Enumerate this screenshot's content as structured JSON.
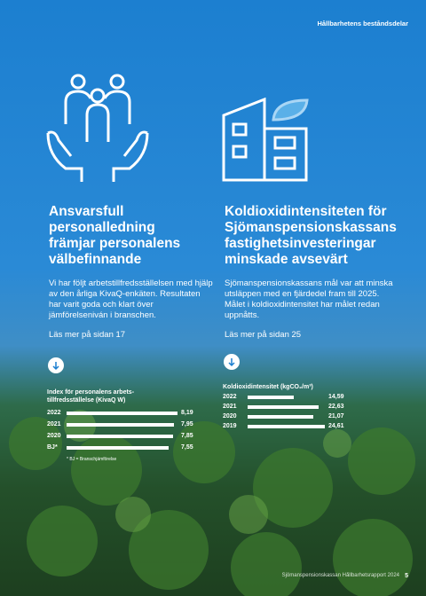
{
  "header": {
    "title": "Hållbarhetens beståndsdelar"
  },
  "left": {
    "heading": "Ansvarsfull personalledning främjar personalens välbefinnande",
    "body": "Vi har följt arbetstillfredsställelsen med hjälp av den årliga KivaQ-enkäten. Resultaten har varit goda och klart över jämförelseniván i branschen.",
    "link": "Läs mer på sidan 17",
    "chart": {
      "title": "Index för personalens arbets-tillfredsställelse (KivaQ W)",
      "rows": [
        {
          "label": "2022",
          "value": 8.19,
          "value_label": "8,19"
        },
        {
          "label": "2021",
          "value": 7.95,
          "value_label": "7,95"
        },
        {
          "label": "2020",
          "value": 7.85,
          "value_label": "7,85"
        },
        {
          "label": "BJ*",
          "value": 7.55,
          "value_label": "7,55"
        }
      ],
      "footnote": "* BJ = Branschjämförelse"
    }
  },
  "right": {
    "heading": "Koldioxidintensiteten för Sjömanspensionskassans fastighetsinvesteringar minskade avsevärt",
    "body": "Sjömanspensionskassans mål var att minska utsläppen med en fjärdedel fram till 2025. Målet i koldioxidintensitet har målet redan uppnåtts.",
    "link": "Läs mer på sidan 25",
    "chart": {
      "title": "Koldioxidintensitet (kgCO₂/m³)",
      "rows": [
        {
          "label": "2022",
          "value": 14.59,
          "value_label": "14,59"
        },
        {
          "label": "2021",
          "value": 22.63,
          "value_label": "22,63"
        },
        {
          "label": "2020",
          "value": 21.07,
          "value_label": "21,07"
        },
        {
          "label": "2019",
          "value": 24.61,
          "value_label": "24,61"
        }
      ]
    }
  },
  "footer": {
    "text": "Sjömanspensionskassan Hållbarhetsrapport 2024",
    "page": "5"
  }
}
